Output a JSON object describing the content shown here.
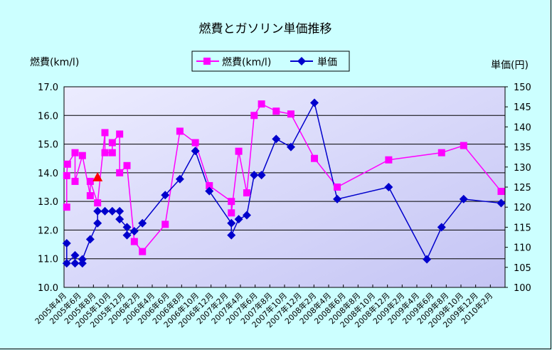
{
  "chart_data": {
    "type": "line",
    "title": "燃費とガソリン単価推移",
    "ylabel_left": "燃費(km/l)",
    "ylabel_right": "単価(円)",
    "ylim_left": [
      10.0,
      17.0
    ],
    "ylim_right": [
      100,
      150
    ],
    "yticks_left": [
      "10.0",
      "11.0",
      "12.0",
      "13.0",
      "14.0",
      "15.0",
      "16.0",
      "17.0"
    ],
    "yticks_right": [
      "100",
      "105",
      "110",
      "115",
      "120",
      "125",
      "130",
      "135",
      "140",
      "145",
      "150"
    ],
    "xlim": [
      "2005-04-01",
      "2010-04-01"
    ],
    "xtick_labels": [
      "2005年4月",
      "2005年6月",
      "2005年8月",
      "2005年10月",
      "2005年12月",
      "2006年2月",
      "2006年4月",
      "2006年6月",
      "2006年8月",
      "2006年10月",
      "2006年12月",
      "2007年2月",
      "2007年4月",
      "2007年6月",
      "2007年8月",
      "2007年10月",
      "2007年12月",
      "2008年2月",
      "2008年4月",
      "2008年6月",
      "2008年8月",
      "2008年10月",
      "2008年12月",
      "2009年2月",
      "2009年4月",
      "2009年6月",
      "2009年8月",
      "2009年10月",
      "2009年12月",
      "2010年2月"
    ],
    "grid": "horizontal",
    "legend_placement": "top-center",
    "series": [
      {
        "name": "燃費(km/l)",
        "axis": "left",
        "color": "#ff00ff",
        "marker": "square",
        "points": [
          [
            "2005-04-12",
            12.8
          ],
          [
            "2005-04-12",
            13.9
          ],
          [
            "2005-04-15",
            14.3
          ],
          [
            "2005-05-16",
            14.7
          ],
          [
            "2005-05-16",
            13.7
          ],
          [
            "2005-06-16",
            14.6
          ],
          [
            "2005-07-18",
            13.2
          ],
          [
            "2005-07-18",
            13.7
          ],
          [
            "2005-08-18",
            12.95
          ],
          [
            "2005-09-18",
            15.4
          ],
          [
            "2005-09-18",
            14.7
          ],
          [
            "2005-10-18",
            14.7
          ],
          [
            "2005-10-18",
            15.05
          ],
          [
            "2005-11-18",
            15.35
          ],
          [
            "2005-11-18",
            14.0
          ],
          [
            "2005-12-18",
            14.25
          ],
          [
            "2006-01-18",
            11.6
          ],
          [
            "2006-02-21",
            11.25
          ],
          [
            "2006-05-24",
            12.2
          ],
          [
            "2006-07-24",
            15.45
          ],
          [
            "2006-09-27",
            15.05
          ],
          [
            "2006-11-24",
            13.55
          ],
          [
            "2007-02-24",
            13.0
          ],
          [
            "2007-02-24",
            12.6
          ],
          [
            "2007-03-24",
            14.75
          ],
          [
            "2007-04-27",
            13.3
          ],
          [
            "2007-05-27",
            16.0
          ],
          [
            "2007-06-27",
            16.4
          ],
          [
            "2007-08-27",
            16.15
          ],
          [
            "2007-10-27",
            16.05
          ],
          [
            "2008-02-03",
            14.5
          ],
          [
            "2008-05-06",
            13.5
          ],
          [
            "2008-12-06",
            14.45
          ],
          [
            "2009-07-12",
            14.7
          ],
          [
            "2009-10-12",
            14.95
          ],
          [
            "2010-03-15",
            13.35
          ]
        ]
      },
      {
        "name": "単価",
        "axis": "right",
        "color": "#0000cc",
        "marker": "diamond",
        "points": [
          [
            "2005-04-12",
            111
          ],
          [
            "2005-04-12",
            106
          ],
          [
            "2005-05-16",
            108
          ],
          [
            "2005-05-16",
            106
          ],
          [
            "2005-06-16",
            106
          ],
          [
            "2005-06-16",
            107
          ],
          [
            "2005-07-18",
            112
          ],
          [
            "2005-08-18",
            116
          ],
          [
            "2005-08-18",
            119
          ],
          [
            "2005-09-18",
            119
          ],
          [
            "2005-10-18",
            119
          ],
          [
            "2005-11-18",
            119
          ],
          [
            "2005-11-18",
            117
          ],
          [
            "2005-12-18",
            115
          ],
          [
            "2005-12-18",
            113
          ],
          [
            "2006-01-18",
            114
          ],
          [
            "2006-02-21",
            116
          ],
          [
            "2006-05-24",
            123
          ],
          [
            "2006-07-24",
            127
          ],
          [
            "2006-09-27",
            134
          ],
          [
            "2006-11-24",
            124
          ],
          [
            "2007-02-24",
            116
          ],
          [
            "2007-02-24",
            113
          ],
          [
            "2007-03-24",
            117
          ],
          [
            "2007-04-27",
            118
          ],
          [
            "2007-05-27",
            128
          ],
          [
            "2007-06-27",
            128
          ],
          [
            "2007-08-27",
            137
          ],
          [
            "2007-10-27",
            135
          ],
          [
            "2008-02-03",
            146
          ],
          [
            "2008-05-06",
            122
          ],
          [
            "2008-12-06",
            125
          ],
          [
            "2009-05-12",
            107
          ],
          [
            "2009-07-12",
            115
          ],
          [
            "2009-10-12",
            122
          ],
          [
            "2010-03-15",
            121
          ]
        ]
      }
    ],
    "annotations": [
      {
        "marker": "triangle",
        "color": "#ff0000",
        "axis": "left",
        "point": [
          "2005-08-18",
          13.85
        ]
      }
    ]
  }
}
